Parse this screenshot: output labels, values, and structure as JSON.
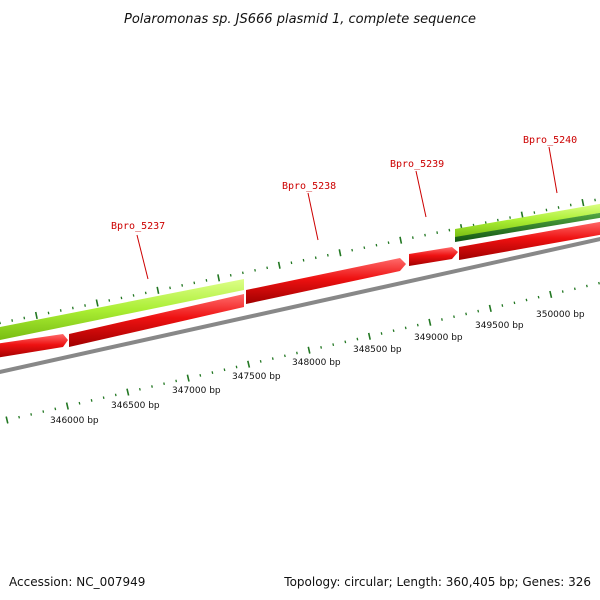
{
  "title": "Polaromonas sp. JS666 plasmid 1, complete sequence",
  "footer": {
    "accession": "Accession: NC_007949",
    "summary": "Topology: circular; Length: 360,405 bp; Genes: 326"
  },
  "genes": [
    {
      "label": "Bpro_5237"
    },
    {
      "label": "Bpro_5238"
    },
    {
      "label": "Bpro_5239"
    },
    {
      "label": "Bpro_5240"
    }
  ],
  "scale_labels": [
    "346000 bp",
    "346500 bp",
    "347000 bp",
    "347500 bp",
    "348000 bp",
    "348500 bp",
    "349000 bp",
    "349500 bp",
    "350000 bp"
  ],
  "colors": {
    "gene_red": "#ee1111",
    "gene_light_green": "#aaee33",
    "gene_dark_green": "#227722",
    "backbone": "#888888",
    "tick_green": "#227722",
    "label_red": "#cc0000"
  }
}
